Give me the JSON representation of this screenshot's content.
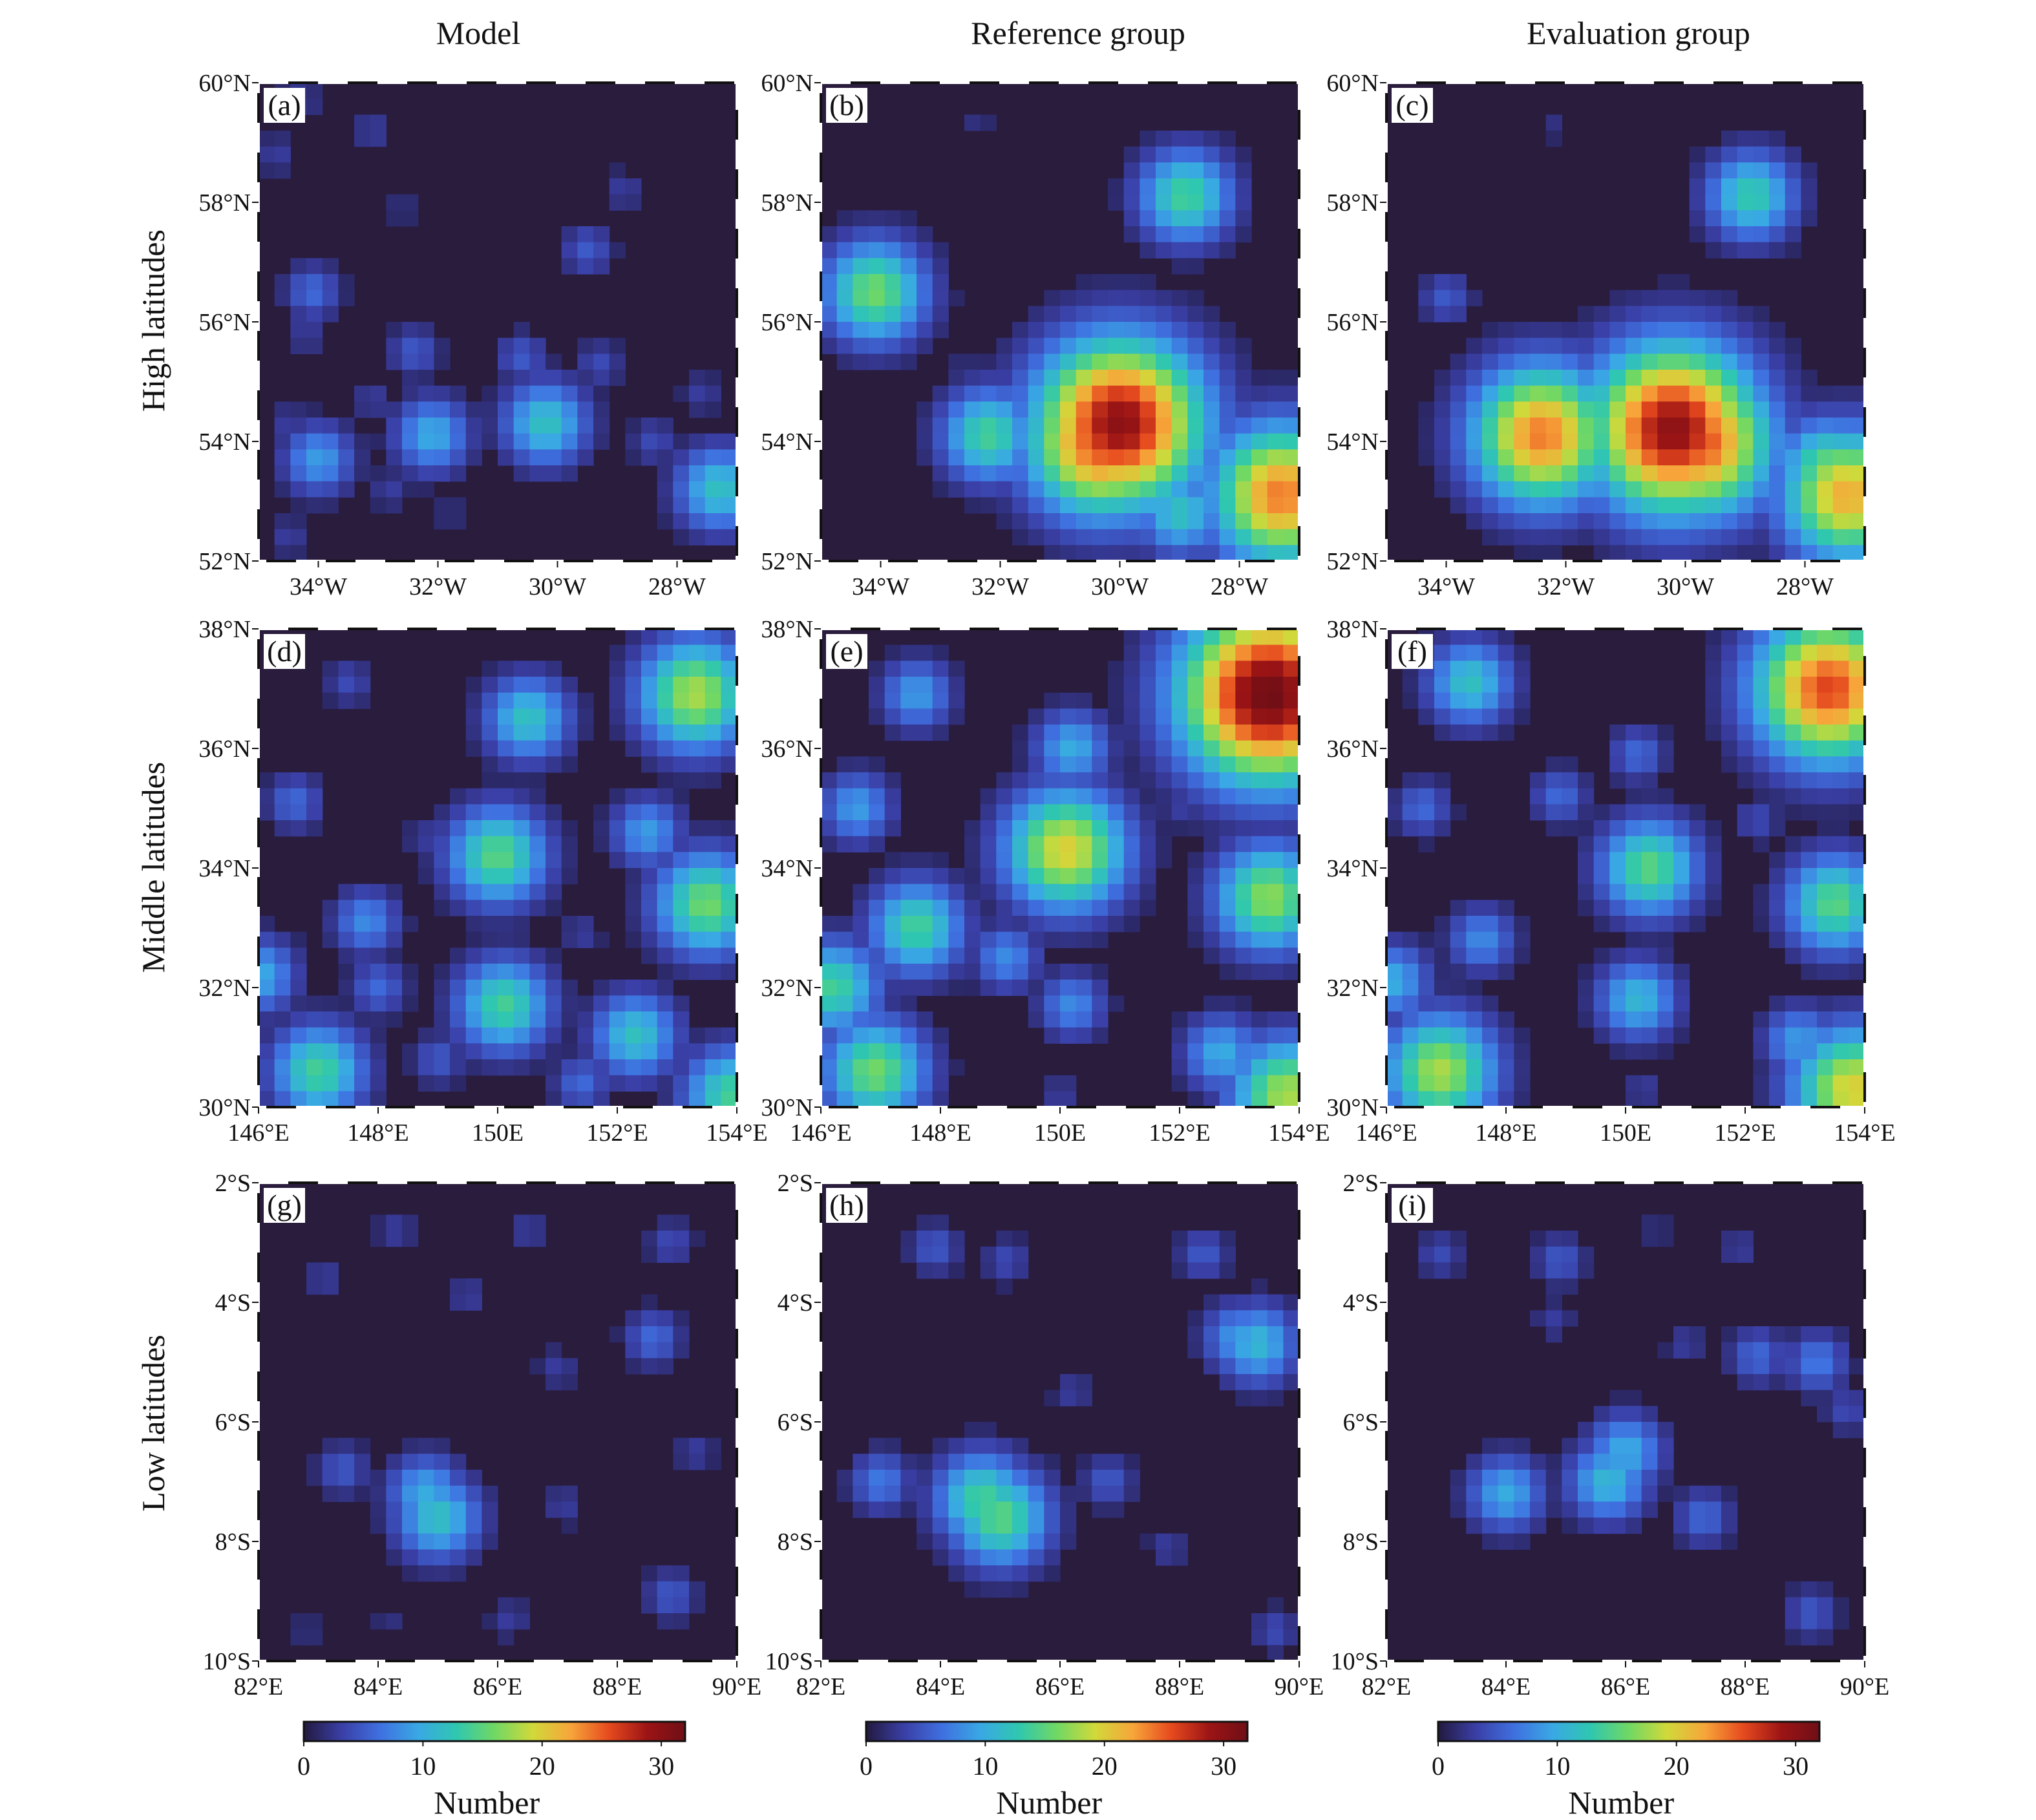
{
  "figure": {
    "column_titles": [
      "Model",
      "Reference group",
      "Evaluation group"
    ],
    "row_titles": [
      "High latitudes",
      "Middle latitudes",
      "Low latitudes"
    ]
  },
  "colormap": {
    "stops": [
      "#231a3f",
      "#3a3fa6",
      "#3f70e0",
      "#39a8e4",
      "#2fc7b0",
      "#70d864",
      "#d0d93a",
      "#f7a53a",
      "#e64a1e",
      "#9c1415",
      "#6e0f16"
    ],
    "background": "#2a1c3d"
  },
  "chart_data": [
    {
      "type": "heatmap",
      "panel": "(a)",
      "group": "Model",
      "region": "High latitudes",
      "x_ticks": [
        "34°W",
        "32°W",
        "30°W",
        "28°W"
      ],
      "y_ticks": [
        "60°N",
        "58°N",
        "56°N",
        "54°N",
        "52°N"
      ],
      "xlim": [
        -35.0,
        -27.0
      ],
      "ylim": [
        52.0,
        60.0
      ],
      "zlim": [
        0,
        32
      ],
      "grid": false,
      "cells": [
        [
          -34.3,
          59.7,
          3
        ],
        [
          -34.7,
          58.8,
          3
        ],
        [
          -33.1,
          59.2,
          3
        ],
        [
          -32.6,
          57.9,
          2
        ],
        [
          -28.9,
          58.2,
          3
        ],
        [
          -34.1,
          56.5,
          6
        ],
        [
          -34.2,
          55.8,
          3
        ],
        [
          -32.4,
          55.5,
          5
        ],
        [
          -30.6,
          55.4,
          5
        ],
        [
          -29.3,
          55.3,
          4
        ],
        [
          -33.1,
          54.7,
          3
        ],
        [
          -34.5,
          54.3,
          3
        ],
        [
          -32.1,
          54.1,
          10
        ],
        [
          -30.2,
          54.3,
          12
        ],
        [
          -28.4,
          54.0,
          4
        ],
        [
          -34.0,
          53.7,
          9
        ],
        [
          -32.8,
          53.2,
          3
        ],
        [
          -27.3,
          53.2,
          12
        ],
        [
          -34.5,
          52.4,
          3
        ],
        [
          -31.8,
          52.8,
          2
        ],
        [
          -29.5,
          57.2,
          5
        ],
        [
          -27.6,
          54.8,
          3
        ]
      ]
    },
    {
      "type": "heatmap",
      "panel": "(b)",
      "group": "Reference group",
      "region": "High latitudes",
      "x_ticks": [
        "34°W",
        "32°W",
        "30°W",
        "28°W"
      ],
      "y_ticks": [
        "60°N",
        "58°N",
        "56°N",
        "54°N",
        "52°N"
      ],
      "xlim": [
        -35.0,
        -27.0
      ],
      "ylim": [
        52.0,
        60.0
      ],
      "zlim": [
        0,
        32
      ],
      "grid": false,
      "cells": [
        [
          -32.4,
          59.3,
          2
        ],
        [
          -28.9,
          58.1,
          14
        ],
        [
          -34.1,
          56.5,
          16
        ],
        [
          -32.6,
          55.2,
          2
        ],
        [
          -31.2,
          55.3,
          6
        ],
        [
          -32.2,
          54.1,
          14
        ],
        [
          -30.0,
          54.3,
          30
        ],
        [
          -30.3,
          54.0,
          26
        ],
        [
          -29.0,
          52.8,
          12
        ],
        [
          -27.3,
          53.1,
          24
        ],
        [
          -27.6,
          53.5,
          16
        ]
      ]
    },
    {
      "type": "heatmap",
      "panel": "(c)",
      "group": "Evaluation group",
      "region": "High latitudes",
      "x_ticks": [
        "34°W",
        "32°W",
        "30°W",
        "28°W"
      ],
      "y_ticks": [
        "60°N",
        "58°N",
        "56°N",
        "54°N",
        "52°N"
      ],
      "xlim": [
        -35.0,
        -27.0
      ],
      "ylim": [
        52.0,
        60.0
      ],
      "zlim": [
        0,
        32
      ],
      "grid": false,
      "cells": [
        [
          -32.2,
          59.3,
          2
        ],
        [
          -28.9,
          58.1,
          13
        ],
        [
          -34.0,
          56.4,
          5
        ],
        [
          -32.4,
          54.1,
          24
        ],
        [
          -30.2,
          54.2,
          30
        ],
        [
          -29.8,
          54.0,
          26
        ],
        [
          -28.5,
          54.0,
          5
        ],
        [
          -29.2,
          52.8,
          5
        ],
        [
          -27.3,
          53.1,
          22
        ],
        [
          -27.6,
          53.5,
          16
        ]
      ]
    },
    {
      "type": "heatmap",
      "panel": "(d)",
      "group": "Model",
      "region": "Middle latitudes",
      "x_ticks": [
        "146°E",
        "148°E",
        "150E",
        "152°E",
        "154°E"
      ],
      "y_ticks": [
        "38°N",
        "36°N",
        "34°N",
        "32°N",
        "30°N"
      ],
      "xlim": [
        146.0,
        154.0
      ],
      "ylim": [
        30.0,
        38.0
      ],
      "zlim": [
        0,
        32
      ],
      "grid": false,
      "cells": [
        [
          147.5,
          37.1,
          4
        ],
        [
          146.6,
          35.1,
          6
        ],
        [
          150.5,
          36.5,
          12
        ],
        [
          153.3,
          36.9,
          18
        ],
        [
          150.0,
          34.2,
          15
        ],
        [
          152.5,
          34.6,
          9
        ],
        [
          153.5,
          33.4,
          16
        ],
        [
          147.8,
          33.1,
          8
        ],
        [
          150.1,
          31.7,
          14
        ],
        [
          148.0,
          32.0,
          6
        ],
        [
          146.0,
          32.2,
          10
        ],
        [
          147.0,
          30.6,
          14
        ],
        [
          152.3,
          31.2,
          12
        ],
        [
          149.0,
          30.8,
          5
        ],
        [
          151.4,
          30.4,
          6
        ],
        [
          153.9,
          30.2,
          14
        ],
        [
          151.4,
          32.9,
          3
        ],
        [
          148.8,
          34.5,
          3
        ]
      ]
    },
    {
      "type": "heatmap",
      "panel": "(e)",
      "group": "Reference group",
      "region": "Middle latitudes",
      "x_ticks": [
        "146°E",
        "148°E",
        "150E",
        "152°E",
        "154°E"
      ],
      "y_ticks": [
        "38°N",
        "36°N",
        "34°N",
        "32°N",
        "30°N"
      ],
      "xlim": [
        146.0,
        154.0
      ],
      "ylim": [
        30.0,
        38.0
      ],
      "zlim": [
        0,
        32
      ],
      "grid": false,
      "cells": [
        [
          147.6,
          36.9,
          9
        ],
        [
          153.5,
          36.9,
          32
        ],
        [
          150.2,
          36.0,
          10
        ],
        [
          146.6,
          35.0,
          9
        ],
        [
          150.1,
          34.3,
          20
        ],
        [
          153.5,
          33.5,
          17
        ],
        [
          147.6,
          33.0,
          14
        ],
        [
          149.1,
          32.5,
          8
        ],
        [
          146.2,
          32.0,
          14
        ],
        [
          150.2,
          31.7,
          8
        ],
        [
          146.9,
          30.6,
          16
        ],
        [
          152.7,
          30.9,
          10
        ],
        [
          153.8,
          30.2,
          18
        ],
        [
          152.0,
          35.0,
          3
        ],
        [
          150.0,
          30.2,
          3
        ]
      ]
    },
    {
      "type": "heatmap",
      "panel": "(f)",
      "group": "Evaluation group",
      "region": "Middle latitudes",
      "x_ticks": [
        "146°E",
        "148°E",
        "150E",
        "152°E",
        "154°E"
      ],
      "y_ticks": [
        "38°N",
        "36°N",
        "34°N",
        "32°N",
        "30°N"
      ],
      "xlim": [
        146.0,
        154.0
      ],
      "ylim": [
        30.0,
        38.0
      ],
      "zlim": [
        0,
        32
      ],
      "grid": false,
      "cells": [
        [
          147.4,
          37.1,
          12
        ],
        [
          153.4,
          37.0,
          26
        ],
        [
          150.2,
          35.9,
          6
        ],
        [
          146.6,
          35.0,
          6
        ],
        [
          150.4,
          34.0,
          15
        ],
        [
          153.5,
          33.4,
          15
        ],
        [
          147.6,
          32.8,
          8
        ],
        [
          150.2,
          31.8,
          11
        ],
        [
          146.1,
          32.1,
          10
        ],
        [
          146.9,
          30.6,
          18
        ],
        [
          152.9,
          31.1,
          9
        ],
        [
          153.8,
          30.3,
          20
        ],
        [
          150.3,
          30.3,
          3
        ],
        [
          152.2,
          34.8,
          4
        ],
        [
          148.9,
          35.2,
          6
        ]
      ]
    },
    {
      "type": "heatmap",
      "panel": "(g)",
      "group": "Model",
      "region": "Low latitudes",
      "x_ticks": [
        "82°E",
        "84°E",
        "86°E",
        "88°E",
        "90°E"
      ],
      "y_ticks": [
        "2°S",
        "4°S",
        "6°S",
        "8°S",
        "10°S"
      ],
      "xlim": [
        82.0,
        90.0
      ],
      "ylim": [
        -10.0,
        -2.0
      ],
      "zlim": [
        0,
        32
      ],
      "grid": false,
      "cells": [
        [
          84.3,
          -2.8,
          3
        ],
        [
          86.5,
          -2.8,
          3
        ],
        [
          88.9,
          -3.0,
          4
        ],
        [
          83.1,
          -3.6,
          3
        ],
        [
          85.5,
          -3.9,
          3
        ],
        [
          88.6,
          -4.6,
          6
        ],
        [
          87.0,
          -5.1,
          3
        ],
        [
          84.8,
          -7.2,
          10
        ],
        [
          85.0,
          -7.6,
          12
        ],
        [
          83.4,
          -6.8,
          5
        ],
        [
          87.1,
          -7.4,
          3
        ],
        [
          88.9,
          -8.9,
          5
        ],
        [
          86.2,
          -9.3,
          3
        ],
        [
          82.8,
          -9.5,
          2
        ],
        [
          84.2,
          -9.3,
          2
        ],
        [
          89.3,
          -6.5,
          3
        ]
      ]
    },
    {
      "type": "heatmap",
      "panel": "(h)",
      "group": "Reference group",
      "region": "Low latitudes",
      "x_ticks": [
        "82°E",
        "84°E",
        "86°E",
        "88°E",
        "90°E"
      ],
      "y_ticks": [
        "2°S",
        "4°S",
        "6°S",
        "8°S",
        "10°S"
      ],
      "xlim": [
        82.0,
        90.0
      ],
      "ylim": [
        -10.0,
        -2.0
      ],
      "zlim": [
        0,
        32
      ],
      "grid": false,
      "cells": [
        [
          83.9,
          -3.1,
          5
        ],
        [
          85.1,
          -3.3,
          4
        ],
        [
          88.4,
          -3.2,
          5
        ],
        [
          89.0,
          -4.6,
          9
        ],
        [
          89.3,
          -4.7,
          11
        ],
        [
          84.7,
          -7.3,
          14
        ],
        [
          85.0,
          -7.6,
          15
        ],
        [
          83.0,
          -7.0,
          7
        ],
        [
          86.8,
          -7.0,
          5
        ],
        [
          87.8,
          -8.1,
          3
        ],
        [
          89.6,
          -9.5,
          4
        ],
        [
          86.2,
          -5.5,
          3
        ]
      ]
    },
    {
      "type": "heatmap",
      "panel": "(i)",
      "group": "Evaluation group",
      "region": "Low latitudes",
      "x_ticks": [
        "82°E",
        "84°E",
        "86°E",
        "88°E",
        "90°E"
      ],
      "y_ticks": [
        "2°S",
        "4°S",
        "6°S",
        "8°S",
        "10°S"
      ],
      "xlim": [
        82.0,
        90.0
      ],
      "ylim": [
        -10.0,
        -2.0
      ],
      "zlim": [
        0,
        32
      ],
      "grid": false,
      "cells": [
        [
          82.9,
          -3.2,
          4
        ],
        [
          84.9,
          -3.3,
          5
        ],
        [
          86.5,
          -2.8,
          2
        ],
        [
          87.9,
          -3.1,
          3
        ],
        [
          88.2,
          -4.9,
          6
        ],
        [
          89.2,
          -5.0,
          7
        ],
        [
          84.0,
          -7.2,
          10
        ],
        [
          85.7,
          -7.0,
          11
        ],
        [
          86.0,
          -6.5,
          10
        ],
        [
          87.3,
          -7.6,
          6
        ],
        [
          89.1,
          -9.2,
          5
        ],
        [
          84.8,
          -4.3,
          3
        ],
        [
          87.0,
          -4.7,
          3
        ],
        [
          89.7,
          -5.8,
          4
        ]
      ]
    }
  ],
  "colorbars": [
    {
      "ticks": [
        "0",
        "10",
        "20",
        "30"
      ],
      "tick_values": [
        0,
        10,
        20,
        30
      ],
      "range": [
        0,
        32
      ],
      "label": "Number"
    },
    {
      "ticks": [
        "0",
        "10",
        "20",
        "30"
      ],
      "tick_values": [
        0,
        10,
        20,
        30
      ],
      "range": [
        0,
        32
      ],
      "label": "Number"
    },
    {
      "ticks": [
        "0",
        "10",
        "20",
        "30"
      ],
      "tick_values": [
        0,
        10,
        20,
        30
      ],
      "range": [
        0,
        32
      ],
      "label": "Number"
    }
  ]
}
